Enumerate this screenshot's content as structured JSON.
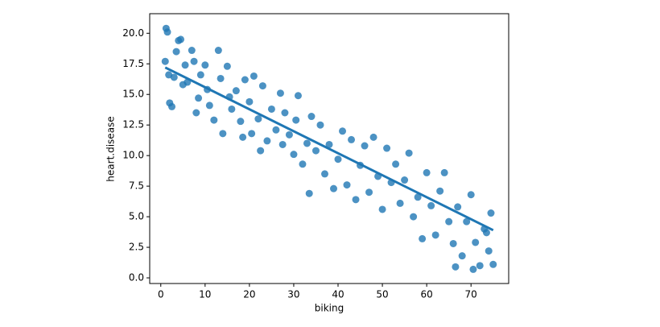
{
  "chart_data": {
    "type": "scatter",
    "x_label": "biking",
    "y_label": "heart.disease",
    "color": "#1f77b4",
    "x": [
      1.2,
      1.5,
      1.0,
      1.8,
      2.0,
      2.5,
      3.0,
      3.5,
      4.0,
      4.5,
      5.0,
      5.5,
      6.0,
      7.0,
      7.5,
      8.0,
      8.5,
      9.0,
      10.0,
      10.5,
      11.0,
      12.0,
      13.0,
      13.5,
      14.0,
      15.0,
      15.5,
      16.0,
      17.0,
      18.0,
      18.5,
      19.0,
      20.0,
      20.5,
      21.0,
      22.0,
      22.5,
      23.0,
      24.0,
      25.0,
      26.0,
      27.0,
      27.5,
      28.0,
      29.0,
      30.0,
      30.5,
      31.0,
      32.0,
      33.0,
      33.5,
      34.0,
      35.0,
      36.0,
      37.0,
      38.0,
      39.0,
      40.0,
      41.0,
      42.0,
      43.0,
      44.0,
      45.0,
      46.0,
      47.0,
      48.0,
      49.0,
      50.0,
      51.0,
      52.0,
      53.0,
      54.0,
      55.0,
      56.0,
      57.0,
      58.0,
      59.0,
      60.0,
      61.0,
      62.0,
      63.0,
      64.0,
      65.0,
      66.0,
      67.0,
      68.0,
      69.0,
      70.0,
      71.0,
      72.0,
      73.0,
      74.0,
      74.5,
      75.0,
      66.5,
      70.5,
      73.5
    ],
    "y": [
      20.4,
      20.1,
      17.7,
      16.6,
      14.3,
      14.0,
      16.4,
      18.5,
      19.4,
      19.5,
      15.8,
      17.4,
      16.0,
      18.6,
      17.7,
      13.5,
      14.7,
      16.6,
      17.4,
      15.4,
      14.1,
      12.9,
      18.6,
      16.3,
      11.8,
      17.3,
      14.8,
      13.8,
      15.3,
      12.8,
      11.5,
      16.2,
      14.4,
      11.8,
      16.5,
      13.0,
      10.4,
      15.7,
      11.2,
      13.8,
      12.1,
      15.1,
      10.9,
      13.5,
      11.7,
      10.1,
      12.9,
      14.9,
      9.3,
      11.0,
      6.9,
      13.2,
      10.4,
      12.5,
      8.5,
      10.9,
      7.3,
      9.7,
      12.0,
      7.6,
      11.3,
      6.4,
      9.2,
      10.8,
      7.0,
      11.5,
      8.3,
      5.6,
      10.6,
      7.8,
      9.3,
      6.1,
      8.0,
      10.2,
      5.0,
      6.6,
      3.2,
      8.6,
      5.9,
      3.5,
      7.1,
      8.6,
      4.6,
      2.8,
      5.8,
      1.8,
      4.6,
      6.8,
      2.9,
      1.0,
      4.0,
      2.2,
      5.3,
      1.1,
      0.9,
      0.7,
      3.7
    ],
    "fit": {
      "x": [
        1,
        75
      ],
      "y": [
        17.2,
        3.9
      ]
    },
    "xlim": [
      -2.5,
      78.5
    ],
    "ylim": [
      -0.46,
      21.6
    ],
    "xticks": [
      0,
      10,
      20,
      30,
      40,
      50,
      60,
      70
    ],
    "yticks": [
      {
        "value": 0,
        "label": "0.0"
      },
      2.5,
      {
        "value": 5,
        "label": "5.0"
      },
      7.5,
      {
        "value": 10,
        "label": "10.0"
      },
      12.5,
      {
        "value": 15,
        "label": "15.0"
      },
      17.5,
      {
        "value": 20,
        "label": "20.0"
      }
    ]
  }
}
